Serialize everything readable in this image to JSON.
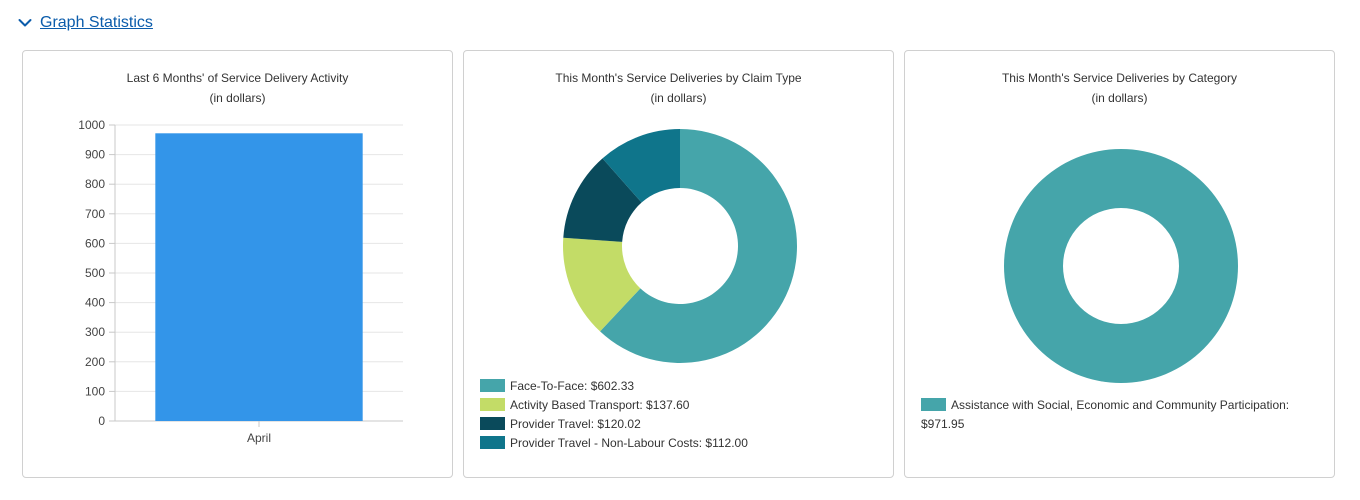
{
  "section": {
    "title": "Graph Statistics",
    "toggle_icon": "chevron-down-icon"
  },
  "colors": {
    "bar": "#3395e9",
    "face_to_face": "#45a5aa",
    "activity_transport": "#c3dc67",
    "provider_travel": "#0a4a5b",
    "provider_travel_nonlabour": "#0f758b",
    "link": "#0b5cab"
  },
  "chart_data": [
    {
      "type": "bar",
      "title": "Last 6 Months' of Service Delivery Activity",
      "subtitle": "(in dollars)",
      "categories": [
        "April"
      ],
      "values": [
        971.95
      ],
      "ylim": [
        0,
        1000
      ],
      "yticks": [
        "0",
        "100",
        "200",
        "300",
        "400",
        "500",
        "600",
        "700",
        "800",
        "900",
        "1000"
      ],
      "grid": true
    },
    {
      "type": "pie",
      "title": "This Month's Service Deliveries by Claim Type",
      "subtitle": "(in dollars)",
      "labels": [
        "Face-To-Face",
        "Activity Based Transport",
        "Provider Travel",
        "Provider Travel - Non-Labour Costs"
      ],
      "values": [
        602.33,
        137.6,
        120.02,
        112.0
      ],
      "legend": [
        "Face-To-Face: $602.33",
        "Activity Based Transport: $137.60",
        "Provider Travel: $120.02",
        "Provider Travel - Non-Labour Costs: $112.00"
      ],
      "legend_position": "bottom-left"
    },
    {
      "type": "pie",
      "title": "This Month's Service Deliveries by Category",
      "subtitle": "(in dollars)",
      "labels": [
        "Assistance with Social, Economic and Community Participation"
      ],
      "values": [
        971.95
      ],
      "legend": [
        "Assistance with Social, Economic and Community Participation: $971.95"
      ],
      "legend_position": "bottom-left"
    }
  ]
}
